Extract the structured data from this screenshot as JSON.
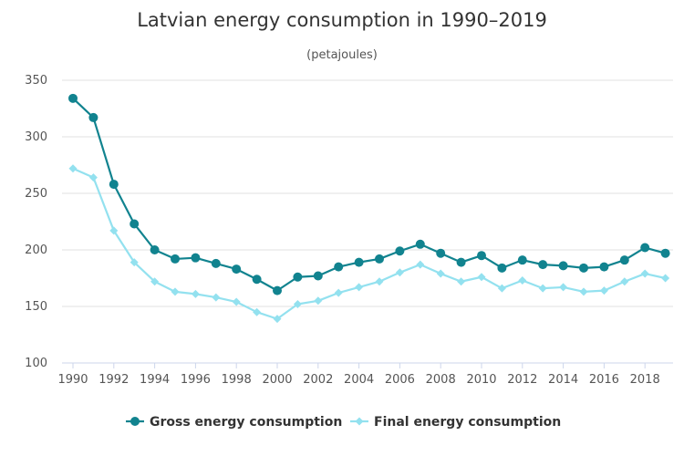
{
  "chart_data": {
    "type": "line",
    "title": "Latvian energy consumption in 1990–2019",
    "subtitle": "(petajoules)",
    "xlabel": "",
    "ylabel": "",
    "x": [
      1990,
      1991,
      1992,
      1993,
      1994,
      1995,
      1996,
      1997,
      1998,
      1999,
      2000,
      2001,
      2002,
      2003,
      2004,
      2005,
      2006,
      2007,
      2008,
      2009,
      2010,
      2011,
      2012,
      2013,
      2014,
      2015,
      2016,
      2017,
      2018,
      2019
    ],
    "x_ticks": [
      "1990",
      "1992",
      "1994",
      "1996",
      "1998",
      "2000",
      "2002",
      "2004",
      "2006",
      "2008",
      "2010",
      "2012",
      "2014",
      "2016",
      "2018"
    ],
    "y_ticks": [
      "100",
      "150",
      "200",
      "250",
      "300",
      "350"
    ],
    "ylim": [
      100,
      350
    ],
    "grid": true,
    "legend_position": "bottom-center",
    "series": [
      {
        "name": "Gross energy consumption",
        "color": "#11838f",
        "marker": "circle",
        "values": [
          334,
          317,
          258,
          223,
          200,
          192,
          193,
          188,
          183,
          174,
          164,
          176,
          177,
          185,
          189,
          192,
          199,
          205,
          197,
          189,
          195,
          184,
          191,
          187,
          186,
          184,
          185,
          191,
          202,
          197
        ]
      },
      {
        "name": "Final energy consumption",
        "color": "#93e1ef",
        "marker": "diamond",
        "values": [
          272,
          264,
          217,
          189,
          172,
          163,
          161,
          158,
          154,
          145,
          139,
          152,
          155,
          162,
          167,
          172,
          180,
          187,
          179,
          172,
          176,
          166,
          173,
          166,
          167,
          163,
          164,
          172,
          179,
          175
        ]
      }
    ]
  }
}
